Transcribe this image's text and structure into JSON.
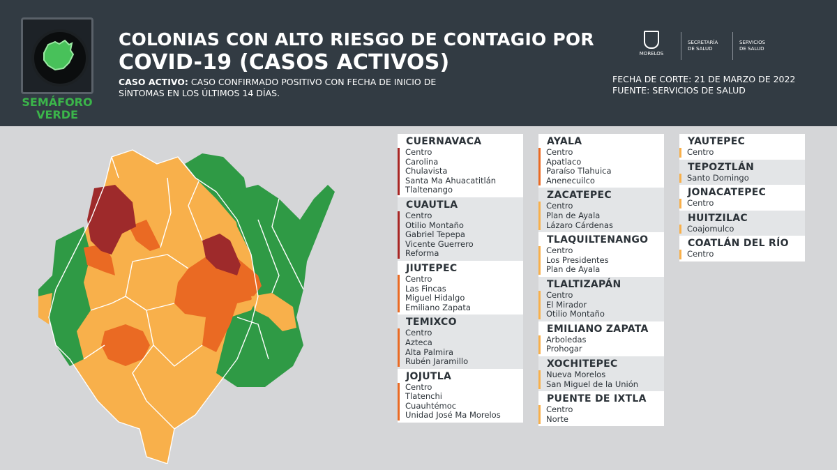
{
  "header": {
    "title_line1": "COLONIAS CON ALTO RIESGO DE CONTAGIO POR",
    "title_line2": "COVID-19 (CASOS ACTIVOS)",
    "definition_label": "CASO ACTIVO:",
    "definition_text": " CASO CONFIRMADO POSITIVO CON FECHA DE INICIO DE SÍNTOMAS EN LOS ÚLTIMOS 14 DÍAS.",
    "semaforo_line1": "SEMÁFORO",
    "semaforo_line2": "VERDE",
    "logo_morelos": "MORELOS",
    "logo_secretaria_1": "SECRETARÍA",
    "logo_secretaria_2": "DE SALUD",
    "logo_servicios_1": "SERVICIOS",
    "logo_servicios_2": "DE SALUD",
    "fecha_corte": "FECHA DE CORTE: 21 DE MARZO DE 2022",
    "fuente": "FUENTE: SERVICIOS DE SALUD"
  },
  "colors": {
    "header_bg": "#323b43",
    "green": "#2f9a45",
    "yellow": "#f8b04b",
    "orange": "#ea6a23",
    "red": "#9e2a2b"
  },
  "columns": [
    [
      {
        "name": "CUERNAVACA",
        "level": "red",
        "bg": "white",
        "items": [
          "Centro",
          "Carolina",
          "Chulavista",
          "Santa Ma Ahuacatitlán",
          "Tlaltenango"
        ]
      },
      {
        "name": "CUAUTLA",
        "level": "red",
        "bg": "grey",
        "items": [
          "Centro",
          "Otilio Montaño",
          "Gabriel Tepepa",
          "Vicente Guerrero",
          "Reforma"
        ]
      },
      {
        "name": "JIUTEPEC",
        "level": "orange",
        "bg": "white",
        "items": [
          "Centro",
          "Las Fincas",
          "Miguel Hidalgo",
          "Emiliano Zapata"
        ]
      },
      {
        "name": "TEMIXCO",
        "level": "orange",
        "bg": "grey",
        "items": [
          "Centro",
          "Azteca",
          "Alta Palmira",
          "Rubén Jaramillo"
        ]
      },
      {
        "name": "JOJUTLA",
        "level": "orange",
        "bg": "white",
        "items": [
          "Centro",
          "Tlatenchi",
          "Cuauhtémoc",
          "Unidad José Ma Morelos"
        ]
      }
    ],
    [
      {
        "name": "AYALA",
        "level": "orange",
        "bg": "white",
        "items": [
          "Centro",
          "Apatlaco",
          "Paraíso Tlahuica",
          "Anenecuilco"
        ]
      },
      {
        "name": "ZACATEPEC",
        "level": "yellow",
        "bg": "grey",
        "items": [
          "Centro",
          "Plan de Ayala",
          "Lázaro Cárdenas"
        ]
      },
      {
        "name": "TLAQUILTENANGO",
        "level": "yellow",
        "bg": "white",
        "items": [
          "Centro",
          "Los Presidentes",
          "Plan de Ayala"
        ]
      },
      {
        "name": "TLALTIZAPÁN",
        "level": "yellow",
        "bg": "grey",
        "items": [
          "Centro",
          "El Mirador",
          "Otilio Montaño"
        ]
      },
      {
        "name": "EMILIANO ZAPATA",
        "level": "yellow",
        "bg": "white",
        "items": [
          "Arboledas",
          "Prohogar"
        ]
      },
      {
        "name": "XOCHITEPEC",
        "level": "yellow",
        "bg": "grey",
        "items": [
          "Nueva Morelos",
          "San Miguel de la Unión"
        ]
      },
      {
        "name": "PUENTE DE IXTLA",
        "level": "yellow",
        "bg": "white",
        "items": [
          "Centro",
          "Norte"
        ]
      }
    ],
    [
      {
        "name": "YAUTEPEC",
        "level": "yellow",
        "bg": "white",
        "items": [
          "Centro"
        ]
      },
      {
        "name": "TEPOZTLÁN",
        "level": "yellow",
        "bg": "grey",
        "items": [
          "Santo Domingo"
        ]
      },
      {
        "name": "JONACATEPEC",
        "level": "yellow",
        "bg": "white",
        "items": [
          "Centro"
        ]
      },
      {
        "name": "HUITZILAC",
        "level": "yellow",
        "bg": "grey",
        "items": [
          "Coajomulco"
        ]
      },
      {
        "name": "COATLÁN DEL RÍO",
        "level": "yellow",
        "bg": "white",
        "items": [
          "Centro"
        ]
      }
    ]
  ]
}
